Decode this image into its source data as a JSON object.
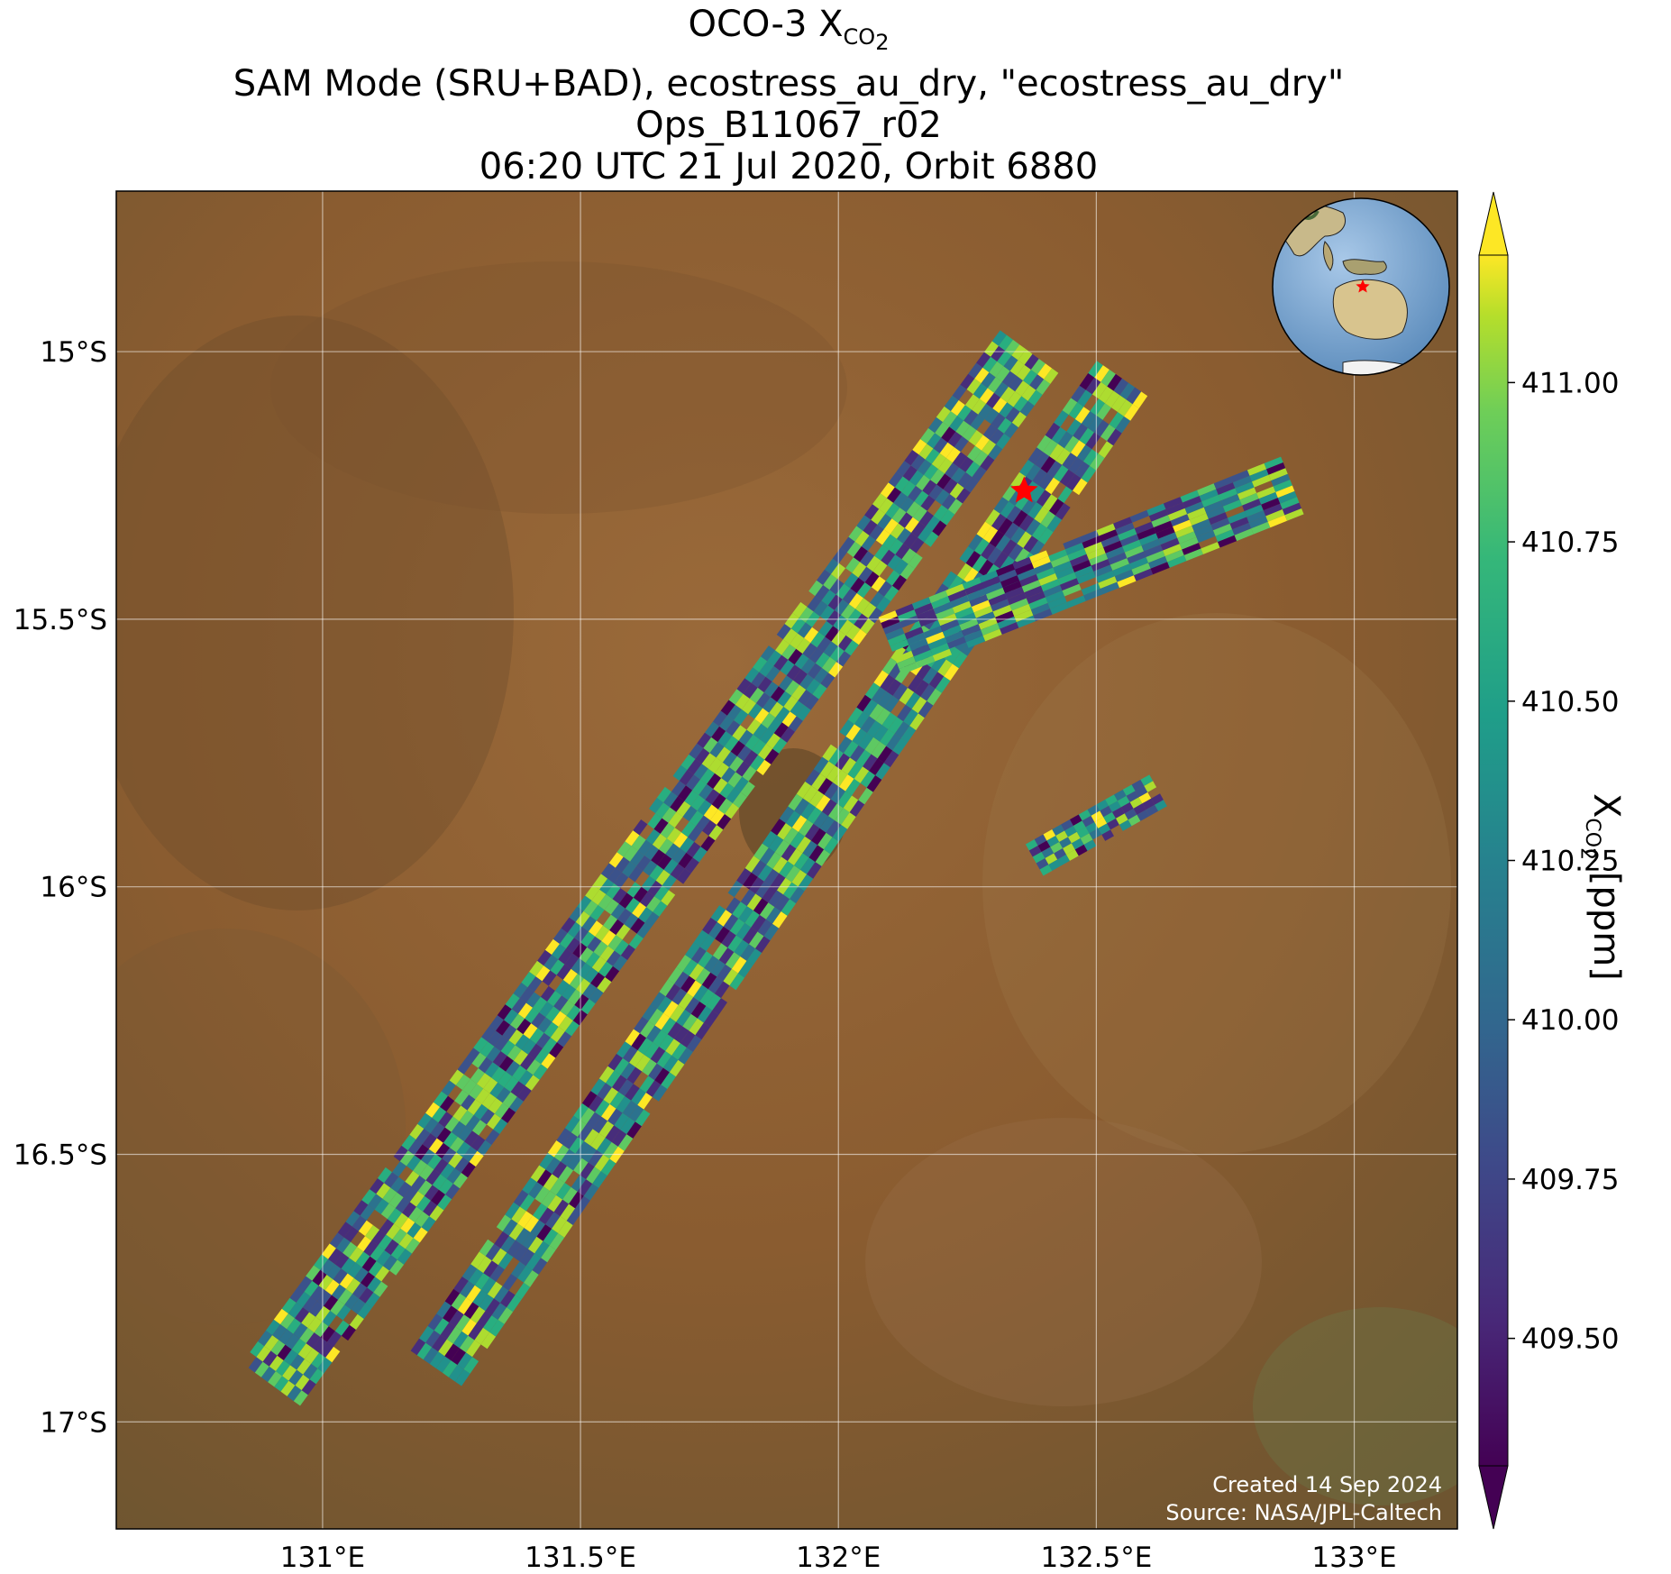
{
  "title": {
    "line1_main": "OCO-3 X",
    "line1_sub": "CO",
    "line1_subsub": "2",
    "line2": "SAM Mode (SRU+BAD), ecostress_au_dry, \"ecostress_au_dry\"",
    "line3": "Ops_B11067_r02",
    "line4": "06:20 UTC 21 Jul 2020, Orbit 6880"
  },
  "map": {
    "extent": {
      "lon_min": 130.6,
      "lon_max": 133.2,
      "lat_min": -17.2,
      "lat_max": -14.7
    },
    "xticks": [
      {
        "value": 131.0,
        "label": "131°E"
      },
      {
        "value": 131.5,
        "label": "131.5°E"
      },
      {
        "value": 132.0,
        "label": "132°E"
      },
      {
        "value": 132.5,
        "label": "132.5°E"
      },
      {
        "value": 133.0,
        "label": "133°E"
      }
    ],
    "yticks": [
      {
        "value": -15.0,
        "label": "15°S"
      },
      {
        "value": -15.5,
        "label": "15.5°S"
      },
      {
        "value": -16.0,
        "label": "16°S"
      },
      {
        "value": -16.5,
        "label": "16.5°S"
      },
      {
        "value": -17.0,
        "label": "17°S"
      }
    ],
    "gridlines": true,
    "basemap": "satellite imagery, northern Australia",
    "target_marker": {
      "lon": 132.36,
      "lat": -15.26,
      "symbol": "star",
      "color": "#ff0000"
    },
    "inset_globe": {
      "location": "top-right",
      "highlight": "northern Australia",
      "marker_color": "#ff0000"
    }
  },
  "colorbar": {
    "label_main": "X",
    "label_sub": "CO",
    "label_subsub": "2",
    "label_unit": " [ppm]",
    "colormap": "viridis",
    "vmin": 409.3,
    "vmax": 411.2,
    "extend": "both",
    "ticks": [
      {
        "value": 409.5,
        "label": "409.50"
      },
      {
        "value": 409.75,
        "label": "409.75"
      },
      {
        "value": 410.0,
        "label": "410.00"
      },
      {
        "value": 410.25,
        "label": "410.25"
      },
      {
        "value": 410.5,
        "label": "410.50"
      },
      {
        "value": 410.75,
        "label": "410.75"
      },
      {
        "value": 411.0,
        "label": "411.00"
      }
    ]
  },
  "credit": {
    "line1": "Created 14 Sep 2024",
    "line2": "Source: NASA/JPL-Caltech"
  },
  "chart_data": {
    "type": "heatmap",
    "variable": "XCO2 (ppm)",
    "value_range": [
      409.3,
      411.2
    ],
    "swaths": [
      {
        "from": {
          "lon": 130.9,
          "lat": -16.93
        },
        "to": {
          "lon": 132.37,
          "lat": -15.0
        }
      },
      {
        "from": {
          "lon": 131.22,
          "lat": -16.9
        },
        "to": {
          "lon": 132.55,
          "lat": -15.05
        }
      },
      {
        "from": {
          "lon": 132.1,
          "lat": -15.55
        },
        "to": {
          "lon": 132.88,
          "lat": -15.25
        }
      },
      {
        "from": {
          "lon": 132.38,
          "lat": -15.95
        },
        "to": {
          "lon": 132.62,
          "lat": -15.82
        }
      }
    ]
  }
}
